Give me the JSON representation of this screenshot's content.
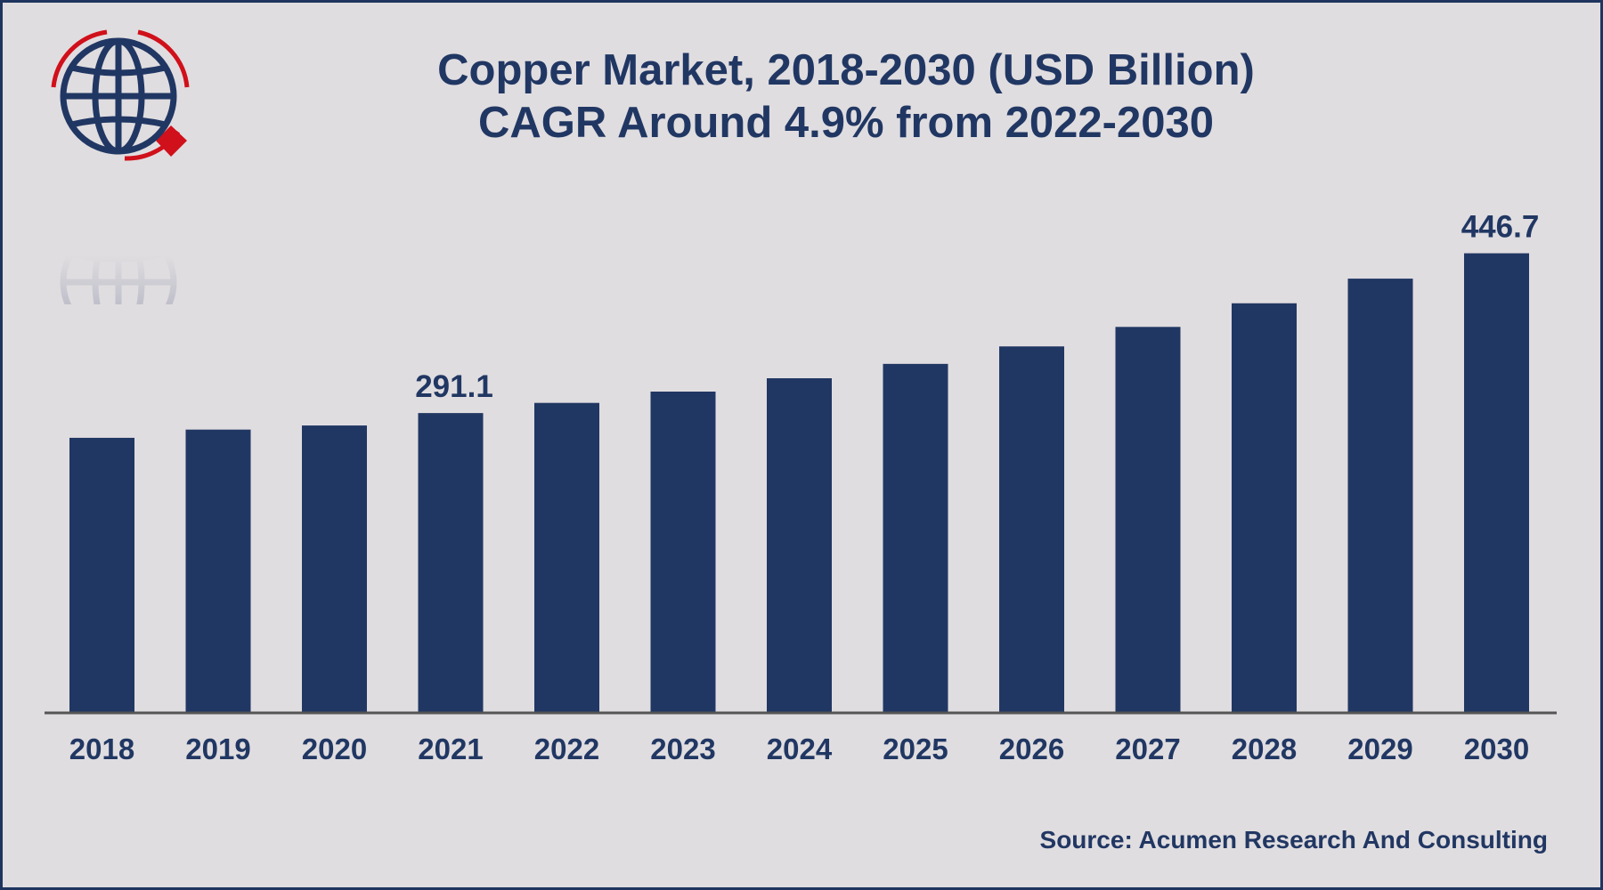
{
  "chart_data": {
    "type": "bar",
    "title": "Copper Market, 2018-2030 (USD Billion)",
    "subtitle": "CAGR Around 4.9% from 2022-2030",
    "categories": [
      "2018",
      "2019",
      "2020",
      "2021",
      "2022",
      "2023",
      "2024",
      "2025",
      "2026",
      "2027",
      "2028",
      "2029",
      "2030"
    ],
    "values": [
      267.0,
      275.0,
      279.0,
      291.1,
      301.0,
      312.0,
      325.0,
      339.0,
      356.0,
      375.0,
      398.0,
      422.0,
      446.7
    ],
    "data_labels": {
      "2021": "291.1",
      "2030": "446.7"
    },
    "ylim": [
      0,
      520
    ],
    "xlabel": "",
    "ylabel": "",
    "grid": false,
    "bar_color": "#213763",
    "axis_color": "#555555"
  },
  "source": "Source: Acumen Research And Consulting",
  "logo": {
    "icon": "globe-logo-icon",
    "primary_color": "#213763",
    "accent_color": "#d0101a"
  }
}
